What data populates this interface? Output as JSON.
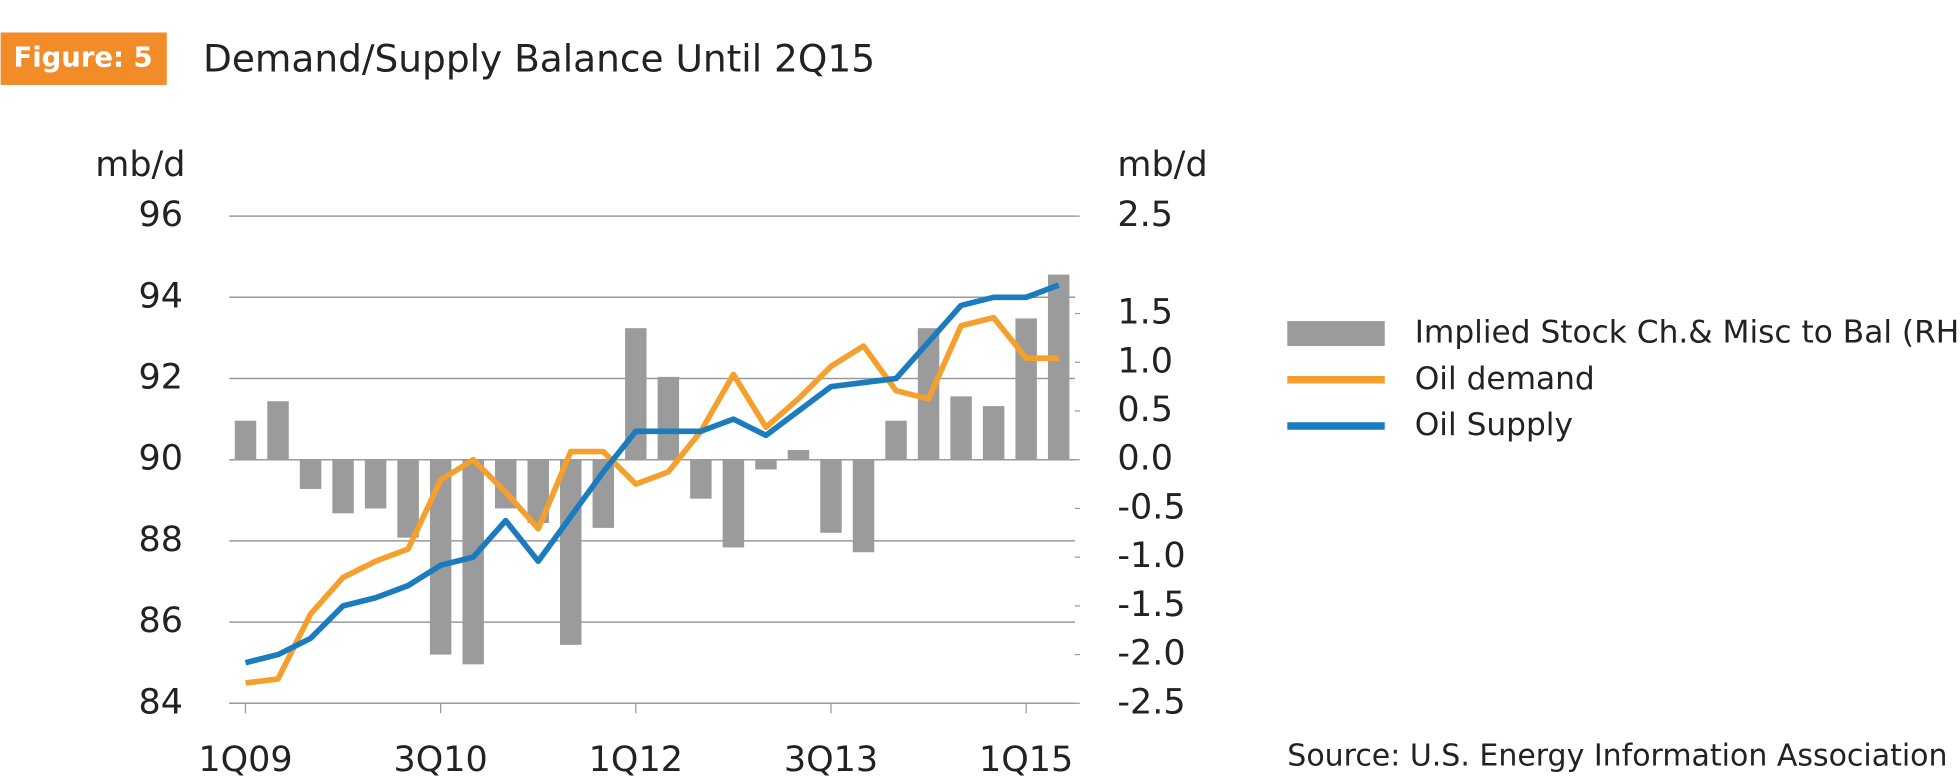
{
  "chart_data": {
    "type": "combo",
    "figure_label": "Figure: 5",
    "title": "Demand/Supply Balance Until 2Q15",
    "y_axis_label": "mb/d",
    "y2_axis_label": "mb/d",
    "source": "Source: U.S. Energy Information Association",
    "categories": [
      "1Q09",
      null,
      null,
      null,
      null,
      null,
      "3Q10",
      null,
      null,
      null,
      null,
      null,
      "1Q12",
      null,
      null,
      null,
      null,
      null,
      "3Q13",
      null,
      null,
      null,
      null,
      null,
      "1Q15",
      null
    ],
    "ylim": [
      84,
      96
    ],
    "yticks": [
      84,
      86,
      88,
      90,
      92,
      94,
      96
    ],
    "y2lim": [
      -2.5,
      2.5
    ],
    "y2ticks": [
      2.5,
      1.5,
      {
        "value": 1.0,
        "label": "1.0"
      },
      0.5,
      {
        "value": 0.0,
        "label": "0.0"
      },
      -0.5,
      {
        "value": -1.0,
        "label": "-1.0"
      },
      -1.5,
      {
        "value": -2.0,
        "label": "-2.0"
      },
      -2.5
    ],
    "grid": true,
    "legend": "right",
    "series": [
      {
        "name": "Implied Stock Ch.& Misc to Bal (RHS)",
        "type": "bar",
        "axis": "y2",
        "color": "#9b9b9b",
        "values": [
          0.4,
          0.6,
          -0.3,
          -0.55,
          -0.5,
          -0.8,
          -2.0,
          -2.1,
          -0.5,
          -0.65,
          -1.9,
          -0.7,
          1.35,
          0.85,
          -0.4,
          -0.9,
          -0.1,
          0.1,
          -0.75,
          -0.95,
          0.4,
          1.35,
          0.65,
          0.55,
          1.45,
          1.9
        ]
      },
      {
        "name": "Oil demand",
        "type": "line",
        "color": "#f5a02c",
        "values": [
          84.5,
          84.6,
          86.2,
          87.1,
          87.5,
          87.8,
          89.5,
          90.0,
          89.2,
          88.3,
          90.2,
          90.2,
          89.4,
          89.7,
          90.7,
          92.1,
          90.8,
          91.5,
          92.3,
          92.8,
          91.7,
          91.5,
          93.3,
          93.5,
          92.5,
          92.5
        ]
      },
      {
        "name": "Oil Supply",
        "type": "line",
        "color": "#1a7bbf",
        "values": [
          85.0,
          85.2,
          85.6,
          86.4,
          86.6,
          86.9,
          87.4,
          87.6,
          88.5,
          87.5,
          88.6,
          89.7,
          90.7,
          90.7,
          90.7,
          91.0,
          90.6,
          91.2,
          91.8,
          91.9,
          92.0,
          92.9,
          93.8,
          94.0,
          94.0,
          94.3
        ]
      }
    ]
  }
}
